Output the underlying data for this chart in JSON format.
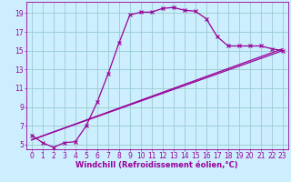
{
  "bg_color": "#cceeff",
  "line_color": "#990099",
  "grid_color": "#99cccc",
  "xlabel": "Windchill (Refroidissement éolien,°C)",
  "xlabel_fontsize": 6.0,
  "tick_fontsize": 5.5,
  "xlim": [
    -0.5,
    23.5
  ],
  "ylim": [
    4.5,
    20.2
  ],
  "yticks": [
    5,
    7,
    9,
    11,
    13,
    15,
    17,
    19
  ],
  "xticks": [
    0,
    1,
    2,
    3,
    4,
    5,
    6,
    7,
    8,
    9,
    10,
    11,
    12,
    13,
    14,
    15,
    16,
    17,
    18,
    19,
    20,
    21,
    22,
    23
  ],
  "curve1_x": [
    0,
    1,
    2,
    3,
    4,
    5,
    6,
    7,
    8,
    9,
    10,
    11,
    12,
    13,
    14,
    15,
    16,
    17,
    18,
    19,
    20,
    21,
    22,
    23
  ],
  "curve1_y": [
    6.0,
    5.2,
    4.7,
    5.2,
    5.3,
    7.0,
    9.5,
    12.5,
    15.8,
    18.8,
    19.1,
    19.1,
    19.5,
    19.6,
    19.3,
    19.2,
    18.4,
    16.5,
    15.5,
    15.5,
    15.5,
    15.5,
    15.2,
    15.0
  ],
  "curve2_x": [
    0,
    23
  ],
  "curve2_y": [
    5.5,
    15.0
  ],
  "curve3_x": [
    0,
    23
  ],
  "curve3_y": [
    5.5,
    15.2
  ],
  "line_width": 0.9,
  "marker_size": 2.5
}
